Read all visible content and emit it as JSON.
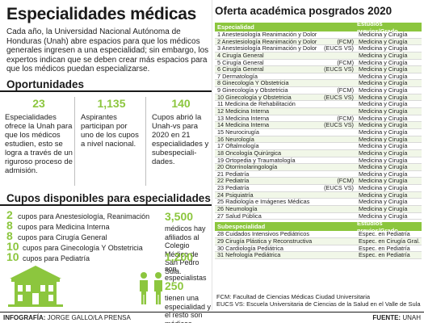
{
  "left": {
    "title": "Especialidades médicas",
    "intro": "Cada año, la Universidad Nacional Autónoma de Honduras (Unah) abre espacios para que los médicos generales ingresen a una especialidad; sin embargo, los expertos indican que se deben crear más espacios para que los médicos puedan especializarse.",
    "oportunidades_heading": "Oportunidades",
    "stats": [
      {
        "number": "23",
        "text": "Especialidades ofrece la Unah para que los médicos estudien, esto se logra a través de un riguroso proceso de admisión."
      },
      {
        "number": "1,135",
        "text": "Aspirantes participan por uno de los cupos a nivel nacional."
      },
      {
        "number": "140",
        "text": "Cupos abrió la Unah-vs para 2020 en 21 especialidades y subespeciali-dades."
      }
    ],
    "cupos_heading": "Cupos disponibles para especialidades",
    "cupos": [
      {
        "n": "2",
        "text": "cupos para Anestesiología, Reanimación"
      },
      {
        "n": "8",
        "text": "cupos para Medicina Interna"
      },
      {
        "n": "8",
        "text": "cupos para Cirugía General"
      },
      {
        "n": "10",
        "text": "cupos para Ginecología Y Obstetricia"
      },
      {
        "n": "10",
        "text": "cupos para Pediatría"
      }
    ],
    "right_stats": [
      {
        "number": "3,500",
        "text": "médicos hay afiliados al Colegio Médico de San Pedro Sula."
      },
      {
        "number": "1,200",
        "text": "son especialistas"
      },
      {
        "number": "250",
        "text": "tienen una especialidad y el resto son médicos generales."
      }
    ]
  },
  "right": {
    "title": "Oferta académica posgrados 2020",
    "header": {
      "col1": "Especialidad",
      "col2": "Estudios previos/Grado"
    },
    "rows": [
      {
        "name": "1 Anestesiología Reanimación y Dolor",
        "tag": "",
        "grado": "Medicina y Cirugía"
      },
      {
        "name": "2 Anestesiología Reanimación y Dolor",
        "tag": "(FCM)",
        "grado": "Medicina y Cirugía"
      },
      {
        "name": "3 Anestesiología Reanimación y Dolor",
        "tag": "(EUCS VS)",
        "grado": "Medicina y Cirugía"
      },
      {
        "name": "4 Cirugía General",
        "tag": "",
        "grado": "Medicina y Cirugía"
      },
      {
        "name": "5 Cirugía General",
        "tag": "(FCM)",
        "grado": "Medicina y Cirugía"
      },
      {
        "name": "6 Cirugía General",
        "tag": "(EUCS VS)",
        "grado": "Medicina y Cirugía"
      },
      {
        "name": "7 Dermatología",
        "tag": "",
        "grado": "Medicina y Cirugía"
      },
      {
        "name": "8 Ginecología Y Obstetricia",
        "tag": "",
        "grado": "Medicina y Cirugía"
      },
      {
        "name": "9 Ginecología y Obstetricia",
        "tag": "(FCM)",
        "grado": "Medicina y Cirugía"
      },
      {
        "name": "10 Ginecología y Obstetricia",
        "tag": "(EUCS VS)",
        "grado": "Medicina y Cirugía"
      },
      {
        "name": "11 Medicina de Rehabilitación",
        "tag": "",
        "grado": "Medicina y Cirugía"
      },
      {
        "name": "12 Medicina Interna",
        "tag": "",
        "grado": "Medicina y Cirugía"
      },
      {
        "name": "13 Medicina Interna",
        "tag": "(FCM)",
        "grado": "Medicina y Cirugía"
      },
      {
        "name": "14 Medicina Interna",
        "tag": "(EUCS VS)",
        "grado": "Medicina y Cirugía"
      },
      {
        "name": "15 Neurocirugía",
        "tag": "",
        "grado": "Medicina y Cirugía"
      },
      {
        "name": "16 Neurología",
        "tag": "",
        "grado": "Medicina y Cirugía"
      },
      {
        "name": "17 Oftalmología",
        "tag": "",
        "grado": "Medicina y Cirugía"
      },
      {
        "name": "18 Oncología Quirúrgica",
        "tag": "",
        "grado": "Medicina y Cirugía"
      },
      {
        "name": "19 Ortopedia y Traumatología",
        "tag": "",
        "grado": "Medicina y Cirugía"
      },
      {
        "name": "20 Otorrinolaringología",
        "tag": "",
        "grado": "Medicina y Cirugía"
      },
      {
        "name": "21 Pediatría",
        "tag": "",
        "grado": "Medicina y Cirugía"
      },
      {
        "name": "22 Pediatría",
        "tag": "(FCM)",
        "grado": "Medicina y Cirugía"
      },
      {
        "name": "23 Pediatría",
        "tag": "(EUCS VS)",
        "grado": "Medicina y Cirugía"
      },
      {
        "name": "24 Psiquiatría",
        "tag": "",
        "grado": "Medicina y Cirugía"
      },
      {
        "name": "25 Radiología e Imágenes Médicas",
        "tag": "",
        "grado": "Medicina y Cirugía"
      },
      {
        "name": "26 Neumología",
        "tag": "",
        "grado": "Medicina y Cirugía"
      },
      {
        "name": "27 Salud Pública",
        "tag": "",
        "grado": "Medicina y Cirugía"
      }
    ],
    "sub_header": {
      "col1": "Subespecialidad",
      "col2": "Estudios previos/Grado"
    },
    "sub_rows": [
      {
        "name": "28 Cuidados Intensivos Pediátricos",
        "tag": "",
        "grado": "Espec. en Pediatría"
      },
      {
        "name": "29 Cirugía Plástica y Reconstructiva",
        "tag": "",
        "grado": "Espec. en Cirugía Gral."
      },
      {
        "name": "30 Cardiología Pediátrica",
        "tag": "",
        "grado": "Espec. en Pediatría"
      },
      {
        "name": "31 Nefrología Pediátrica",
        "tag": "",
        "grado": "Espec. en Pediatría"
      }
    ],
    "notes": [
      "FCM: Facultad de Ciencias Médicas Ciudad Universitaria",
      "EUCS VS: Escuela Universitaria de Ciencias de la Salud en el Valle de Sula"
    ]
  },
  "footer": {
    "left_label": "INFOGRAFÍA:",
    "left_value": "JORGE GALLO/LA PRENSA",
    "right_label": "FUENTE:",
    "right_value": "UNAH"
  },
  "colors": {
    "accent": "#8cc63e",
    "text": "#222222"
  }
}
